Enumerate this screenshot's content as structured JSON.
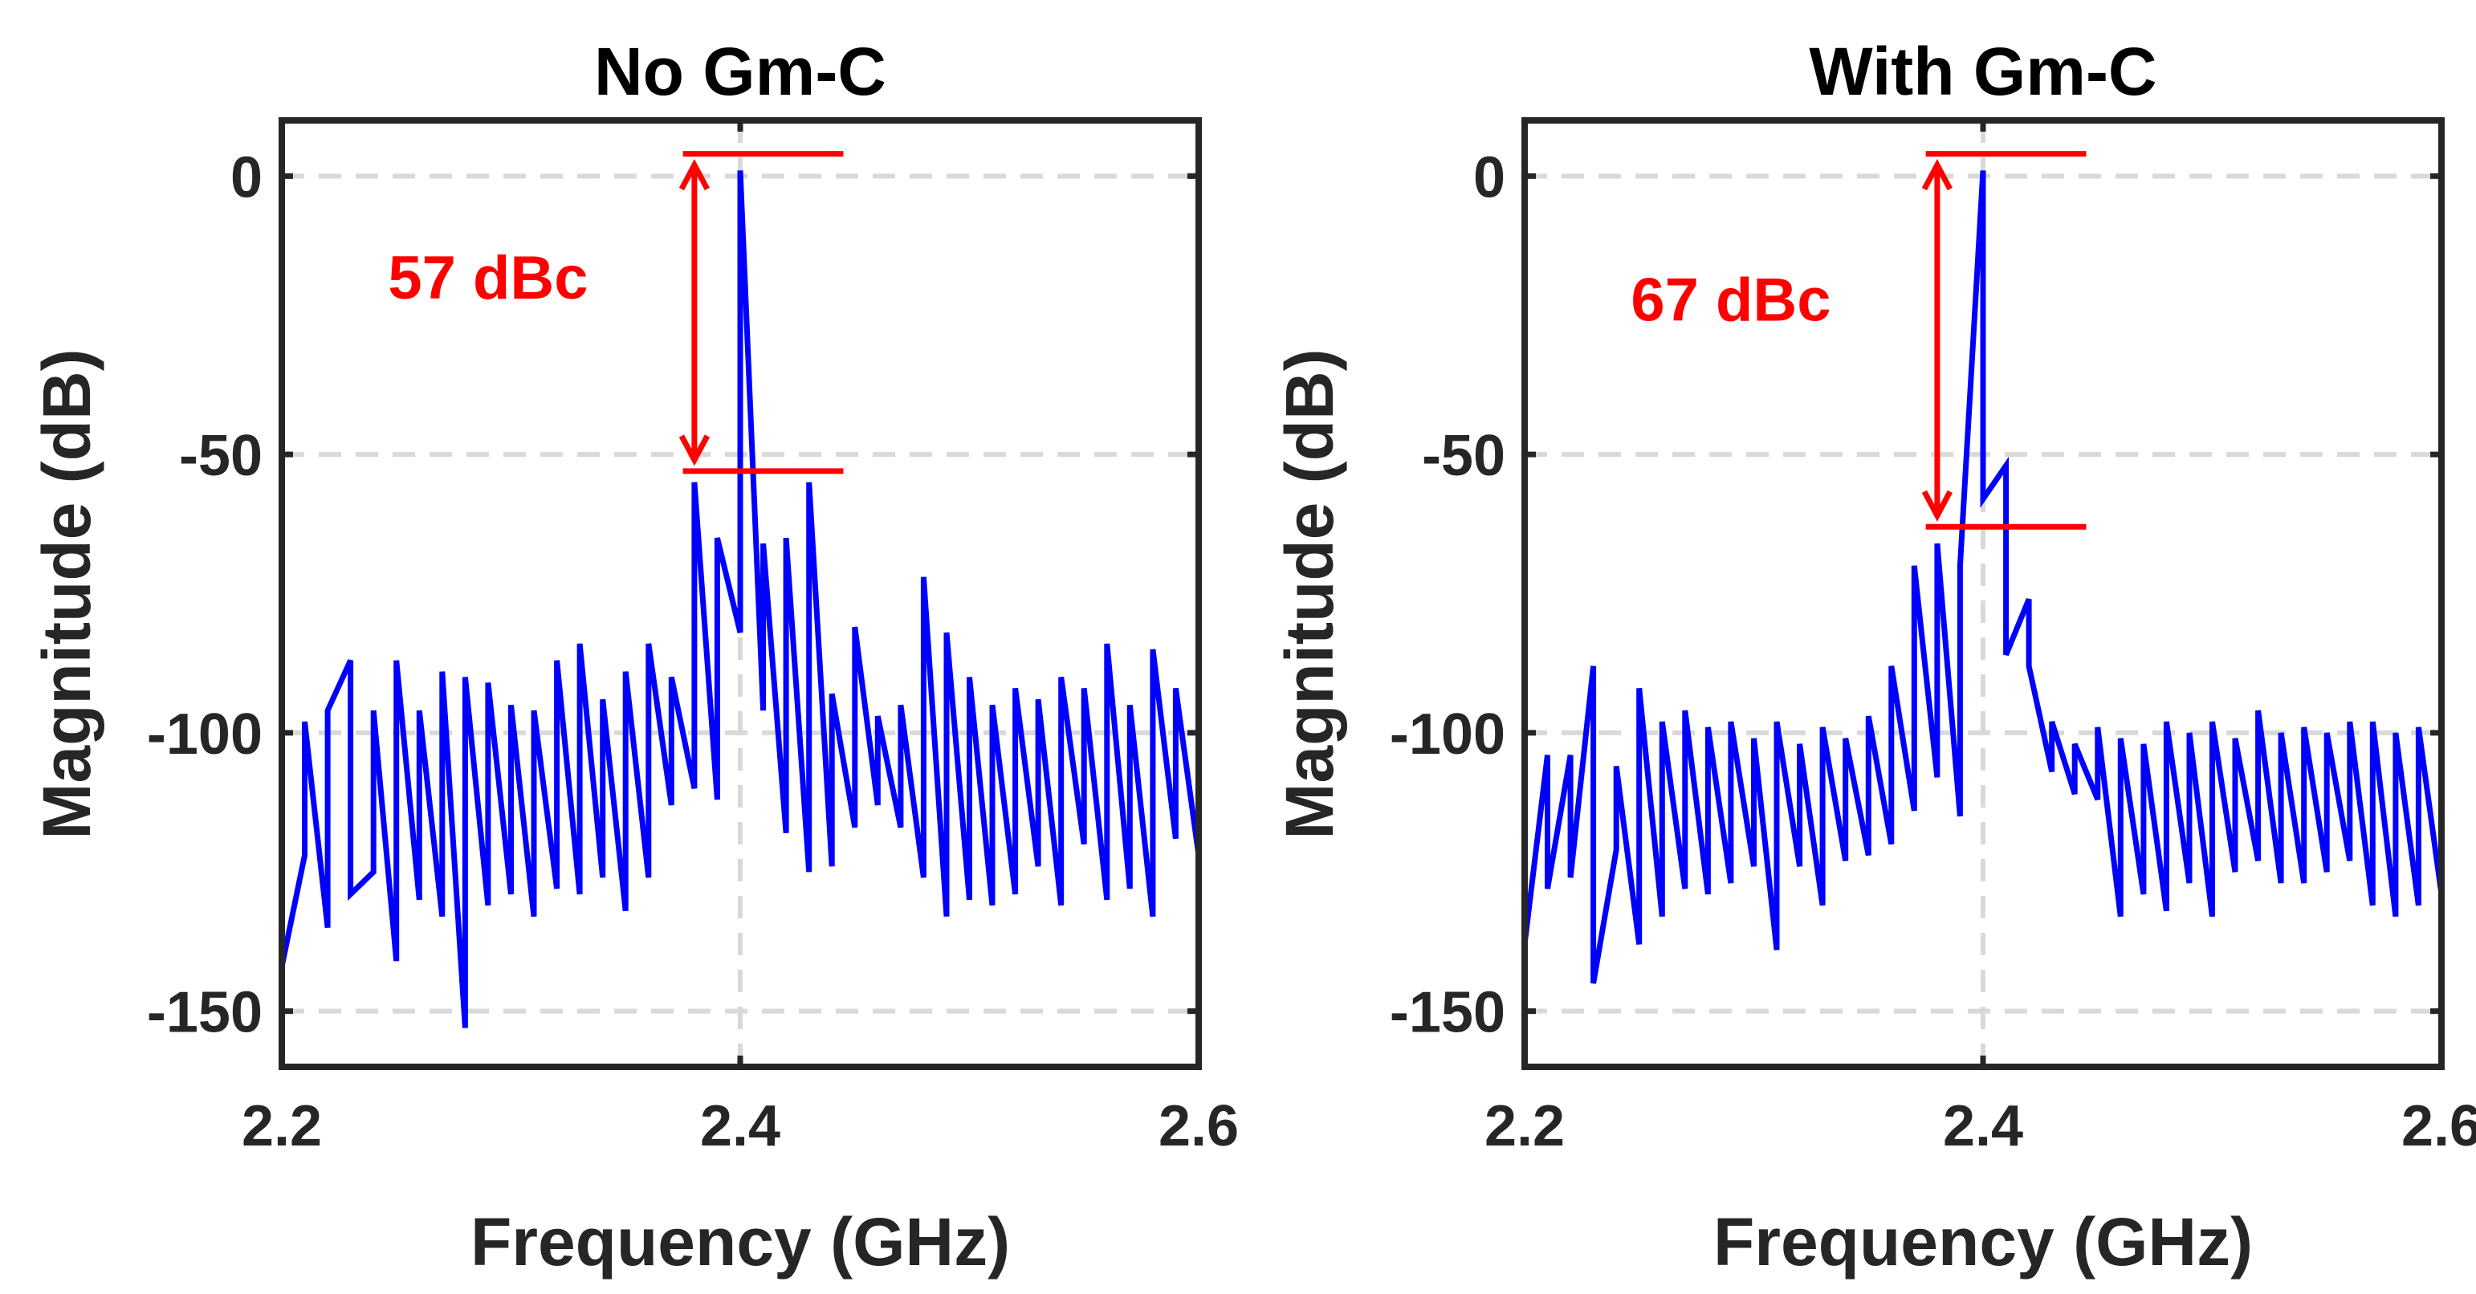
{
  "chart_data": [
    {
      "type": "line",
      "title": "No Gm-C",
      "xlabel": "Frequency (GHz)",
      "ylabel": "Magnitude (dB)",
      "xlim": [
        2.2,
        2.6
      ],
      "ylim": [
        -160,
        10
      ],
      "xticks": [
        2.2,
        2.4,
        2.6
      ],
      "xtick_labels": [
        "2.2",
        "2.4",
        "2.6"
      ],
      "yticks": [
        0,
        -50,
        -100,
        -150
      ],
      "ytick_labels": [
        "0",
        "-50",
        "-100",
        "-150"
      ],
      "grid": true,
      "series_color": "#0000ff",
      "series": [
        {
          "name": "spectrum",
          "x": [
            2.2,
            2.2,
            2.21,
            2.21,
            2.22,
            2.22,
            2.23,
            2.23,
            2.24,
            2.24,
            2.25,
            2.25,
            2.26,
            2.26,
            2.27,
            2.27,
            2.28,
            2.28,
            2.29,
            2.29,
            2.3,
            2.3,
            2.31,
            2.31,
            2.32,
            2.32,
            2.33,
            2.33,
            2.34,
            2.34,
            2.35,
            2.35,
            2.36,
            2.36,
            2.37,
            2.37,
            2.38,
            2.38,
            2.39,
            2.39,
            2.4,
            2.4,
            2.41,
            2.41,
            2.42,
            2.42,
            2.43,
            2.43,
            2.44,
            2.44,
            2.45,
            2.45,
            2.46,
            2.46,
            2.47,
            2.47,
            2.48,
            2.48,
            2.49,
            2.49,
            2.5,
            2.5,
            2.51,
            2.51,
            2.52,
            2.52,
            2.53,
            2.53,
            2.54,
            2.54,
            2.55,
            2.55,
            2.56,
            2.56,
            2.57,
            2.57,
            2.58,
            2.58,
            2.59,
            2.59,
            2.6,
            2.6
          ],
          "y": [
            -84,
            -142,
            -122,
            -98,
            -135,
            -96,
            -87,
            -129,
            -125,
            -96,
            -141,
            -87,
            -130,
            -96,
            -133,
            -89,
            -153,
            -90,
            -131,
            -91,
            -129,
            -95,
            -133,
            -96,
            -128,
            -87,
            -129,
            -84,
            -126,
            -94,
            -132,
            -89,
            -126,
            -84,
            -113,
            -90,
            -110,
            -55,
            -112,
            -65,
            -82,
            1,
            -96,
            -66,
            -118,
            -65,
            -125,
            -55,
            -124,
            -93,
            -117,
            -81,
            -113,
            -97,
            -117,
            -95,
            -126,
            -72,
            -133,
            -82,
            -130,
            -90,
            -131,
            -95,
            -129,
            -92,
            -124,
            -94,
            -131,
            -90,
            -120,
            -92,
            -130,
            -84,
            -128,
            -95,
            -133,
            -85,
            -119,
            -92,
            -122,
            -86
          ]
        }
      ],
      "markers": [
        {
          "y": 4,
          "x_start": 2.375,
          "x_end": 2.445
        },
        {
          "y": -53,
          "x_start": 2.375,
          "x_end": 2.445
        }
      ],
      "arrow": {
        "x": 2.38,
        "y_top": 2,
        "y_bottom": -51
      },
      "annotation": {
        "text": "57 dBc",
        "x": 2.29,
        "y": -22,
        "color": "#ff0000"
      }
    },
    {
      "type": "line",
      "title": "With Gm-C",
      "xlabel": "Frequency (GHz)",
      "ylabel": "Magnitude (dB)",
      "xlim": [
        2.2,
        2.6
      ],
      "ylim": [
        -160,
        10
      ],
      "xticks": [
        2.2,
        2.4,
        2.6
      ],
      "xtick_labels": [
        "2.2",
        "2.4",
        "2.6"
      ],
      "yticks": [
        0,
        -50,
        -100,
        -150
      ],
      "ytick_labels": [
        "0",
        "-50",
        "-100",
        "-150"
      ],
      "grid": true,
      "series_color": "#0000ff",
      "series": [
        {
          "name": "spectrum",
          "x": [
            2.2,
            2.2,
            2.21,
            2.21,
            2.22,
            2.22,
            2.23,
            2.23,
            2.24,
            2.24,
            2.25,
            2.25,
            2.26,
            2.26,
            2.27,
            2.27,
            2.28,
            2.28,
            2.29,
            2.29,
            2.3,
            2.3,
            2.31,
            2.31,
            2.32,
            2.32,
            2.33,
            2.33,
            2.34,
            2.34,
            2.35,
            2.35,
            2.36,
            2.36,
            2.37,
            2.37,
            2.38,
            2.38,
            2.39,
            2.39,
            2.4,
            2.4,
            2.41,
            2.41,
            2.42,
            2.42,
            2.43,
            2.43,
            2.44,
            2.44,
            2.45,
            2.45,
            2.46,
            2.46,
            2.47,
            2.47,
            2.48,
            2.48,
            2.49,
            2.49,
            2.5,
            2.5,
            2.51,
            2.51,
            2.52,
            2.52,
            2.53,
            2.53,
            2.54,
            2.54,
            2.55,
            2.55,
            2.56,
            2.56,
            2.57,
            2.57,
            2.58,
            2.58,
            2.59,
            2.59,
            2.6,
            2.6
          ],
          "y": [
            -86,
            -138,
            -104,
            -128,
            -104,
            -126,
            -88,
            -145,
            -121,
            -106,
            -138,
            -92,
            -133,
            -98,
            -128,
            -96,
            -129,
            -99,
            -127,
            -98,
            -124,
            -101,
            -139,
            -98,
            -124,
            -102,
            -131,
            -99,
            -123,
            -101,
            -122,
            -97,
            -120,
            -88,
            -114,
            -70,
            -108,
            -66,
            -115,
            -70,
            1,
            -58,
            -52,
            -86,
            -76,
            -88,
            -107,
            -98,
            -111,
            -102,
            -112,
            -99,
            -133,
            -101,
            -129,
            -102,
            -132,
            -98,
            -127,
            -100,
            -133,
            -98,
            -125,
            -101,
            -123,
            -96,
            -127,
            -100,
            -127,
            -99,
            -125,
            -100,
            -123,
            -98,
            -131,
            -98,
            -133,
            -100,
            -131,
            -99,
            -129,
            -91
          ]
        }
      ],
      "markers": [
        {
          "y": 4,
          "x_start": 2.375,
          "x_end": 2.445
        },
        {
          "y": -63,
          "x_start": 2.375,
          "x_end": 2.445
        }
      ],
      "arrow": {
        "x": 2.38,
        "y_top": 2,
        "y_bottom": -61
      },
      "annotation": {
        "text": "67 dBc",
        "x": 2.29,
        "y": -26,
        "color": "#ff0000"
      }
    }
  ]
}
